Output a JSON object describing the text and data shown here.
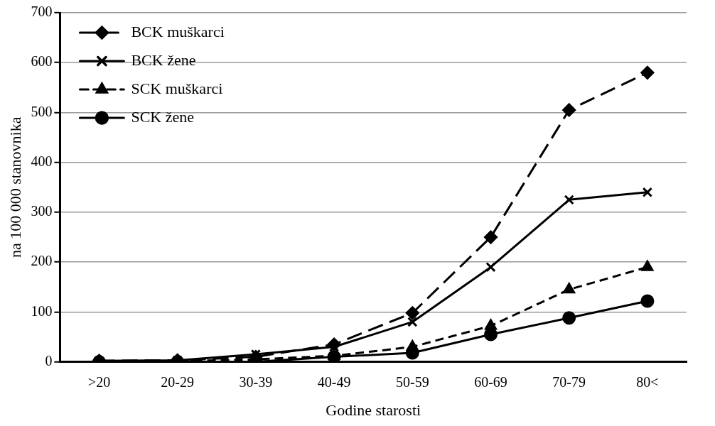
{
  "chart_data": {
    "type": "line",
    "xlabel": "Godine starosti",
    "ylabel": "na 100 000 stanovnika",
    "categories": [
      ">20",
      "20-29",
      "30-39",
      "40-49",
      "50-59",
      "60-69",
      "70-79",
      "80<"
    ],
    "ylim": [
      0,
      700
    ],
    "yticks": [
      0,
      100,
      200,
      300,
      400,
      500,
      600,
      700
    ],
    "grid": "y",
    "legend": "top left",
    "series": [
      {
        "name": "BCK muškarci",
        "color": "#000000",
        "marker": "diamond",
        "line_style": "dashed",
        "values": [
          2,
          3,
          10,
          35,
          98,
          250,
          505,
          580
        ]
      },
      {
        "name": "BCK žene",
        "color": "#000000",
        "marker": "cross",
        "line_style": "solid",
        "values": [
          2,
          3,
          15,
          30,
          80,
          190,
          325,
          340
        ]
      },
      {
        "name": "SCK muškarci",
        "color": "#000000",
        "marker": "triangle",
        "line_style": "dashed",
        "values": [
          1,
          1,
          5,
          12,
          30,
          72,
          145,
          190
        ]
      },
      {
        "name": "SCK žene",
        "color": "#000000",
        "marker": "circle",
        "line_style": "solid",
        "values": [
          0,
          0,
          0,
          10,
          18,
          55,
          88,
          122
        ]
      }
    ]
  }
}
